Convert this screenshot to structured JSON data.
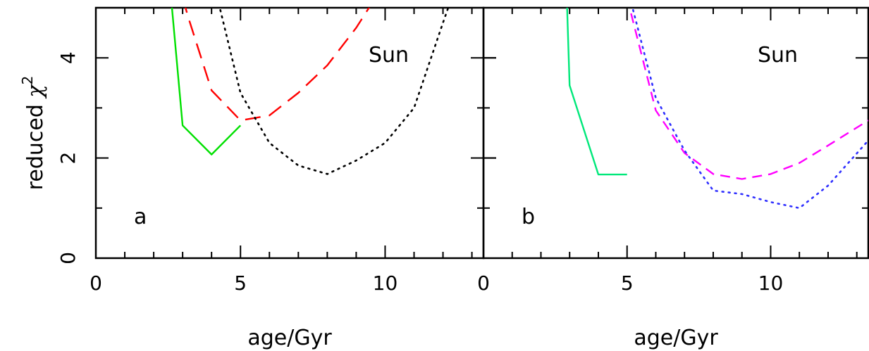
{
  "chart_data": [
    {
      "type": "line",
      "panel_label": "a",
      "annotation": "Sun",
      "xlabel": "age/Gyr",
      "ylabel_text": "reduced ",
      "ylabel_symbol": "χ",
      "ylabel_exponent": "2",
      "xlim": [
        0,
        13.4
      ],
      "ylim": [
        0,
        5
      ],
      "x_ticks": [
        {
          "value": 0,
          "label": "0"
        },
        {
          "value": 5,
          "label": "5"
        },
        {
          "value": 10,
          "label": "10"
        }
      ],
      "y_ticks": [
        {
          "value": 0,
          "label": "0"
        },
        {
          "value": 2,
          "label": "2"
        },
        {
          "value": 4,
          "label": "4"
        }
      ],
      "series": [
        {
          "color": "#00e000",
          "style": "solid",
          "points": [
            [
              2.6,
              5.2
            ],
            [
              3,
              2.65
            ],
            [
              4,
              2.07
            ],
            [
              5,
              2.65
            ]
          ]
        },
        {
          "color": "#ff0000",
          "style": "longdash",
          "points": [
            [
              3.0,
              5.2
            ],
            [
              3.2,
              4.8
            ],
            [
              4,
              3.35
            ],
            [
              5,
              2.75
            ],
            [
              6,
              2.85
            ],
            [
              7,
              3.3
            ],
            [
              8,
              3.85
            ],
            [
              9,
              4.6
            ],
            [
              9.5,
              5.05
            ]
          ]
        },
        {
          "color": "#000000",
          "style": "dotted",
          "points": [
            [
              4.2,
              5.2
            ],
            [
              5,
              3.3
            ],
            [
              6,
              2.3
            ],
            [
              7,
              1.85
            ],
            [
              8,
              1.68
            ],
            [
              9,
              1.95
            ],
            [
              10,
              2.3
            ],
            [
              11,
              3.0
            ],
            [
              12,
              4.7
            ],
            [
              12.3,
              5.2
            ]
          ]
        }
      ]
    },
    {
      "type": "line",
      "panel_label": "b",
      "annotation": "Sun",
      "xlabel": "age/Gyr",
      "xlim": [
        0,
        13.4
      ],
      "ylim": [
        0,
        5
      ],
      "x_ticks": [
        {
          "value": 0,
          "label": "0"
        },
        {
          "value": 5,
          "label": "5"
        },
        {
          "value": 10,
          "label": "10"
        }
      ],
      "series": [
        {
          "color": "#00e87a",
          "style": "solid",
          "points": [
            [
              2.9,
              5.2
            ],
            [
              3,
              3.45
            ],
            [
              4,
              1.67
            ],
            [
              5,
              1.67
            ]
          ]
        },
        {
          "color": "#ff00ff",
          "style": "dashed",
          "points": [
            [
              5.0,
              5.2
            ],
            [
              6,
              2.95
            ],
            [
              7,
              2.1
            ],
            [
              8,
              1.68
            ],
            [
              9,
              1.58
            ],
            [
              10,
              1.68
            ],
            [
              11,
              1.9
            ],
            [
              12,
              2.25
            ],
            [
              13.4,
              2.75
            ]
          ]
        },
        {
          "color": "#3030ff",
          "style": "dotted",
          "points": [
            [
              5.1,
              5.2
            ],
            [
              6,
              3.2
            ],
            [
              7,
              2.15
            ],
            [
              8,
              1.35
            ],
            [
              9,
              1.28
            ],
            [
              10,
              1.12
            ],
            [
              11,
              1.0
            ],
            [
              12,
              1.45
            ],
            [
              13.4,
              2.35
            ]
          ]
        }
      ]
    }
  ]
}
